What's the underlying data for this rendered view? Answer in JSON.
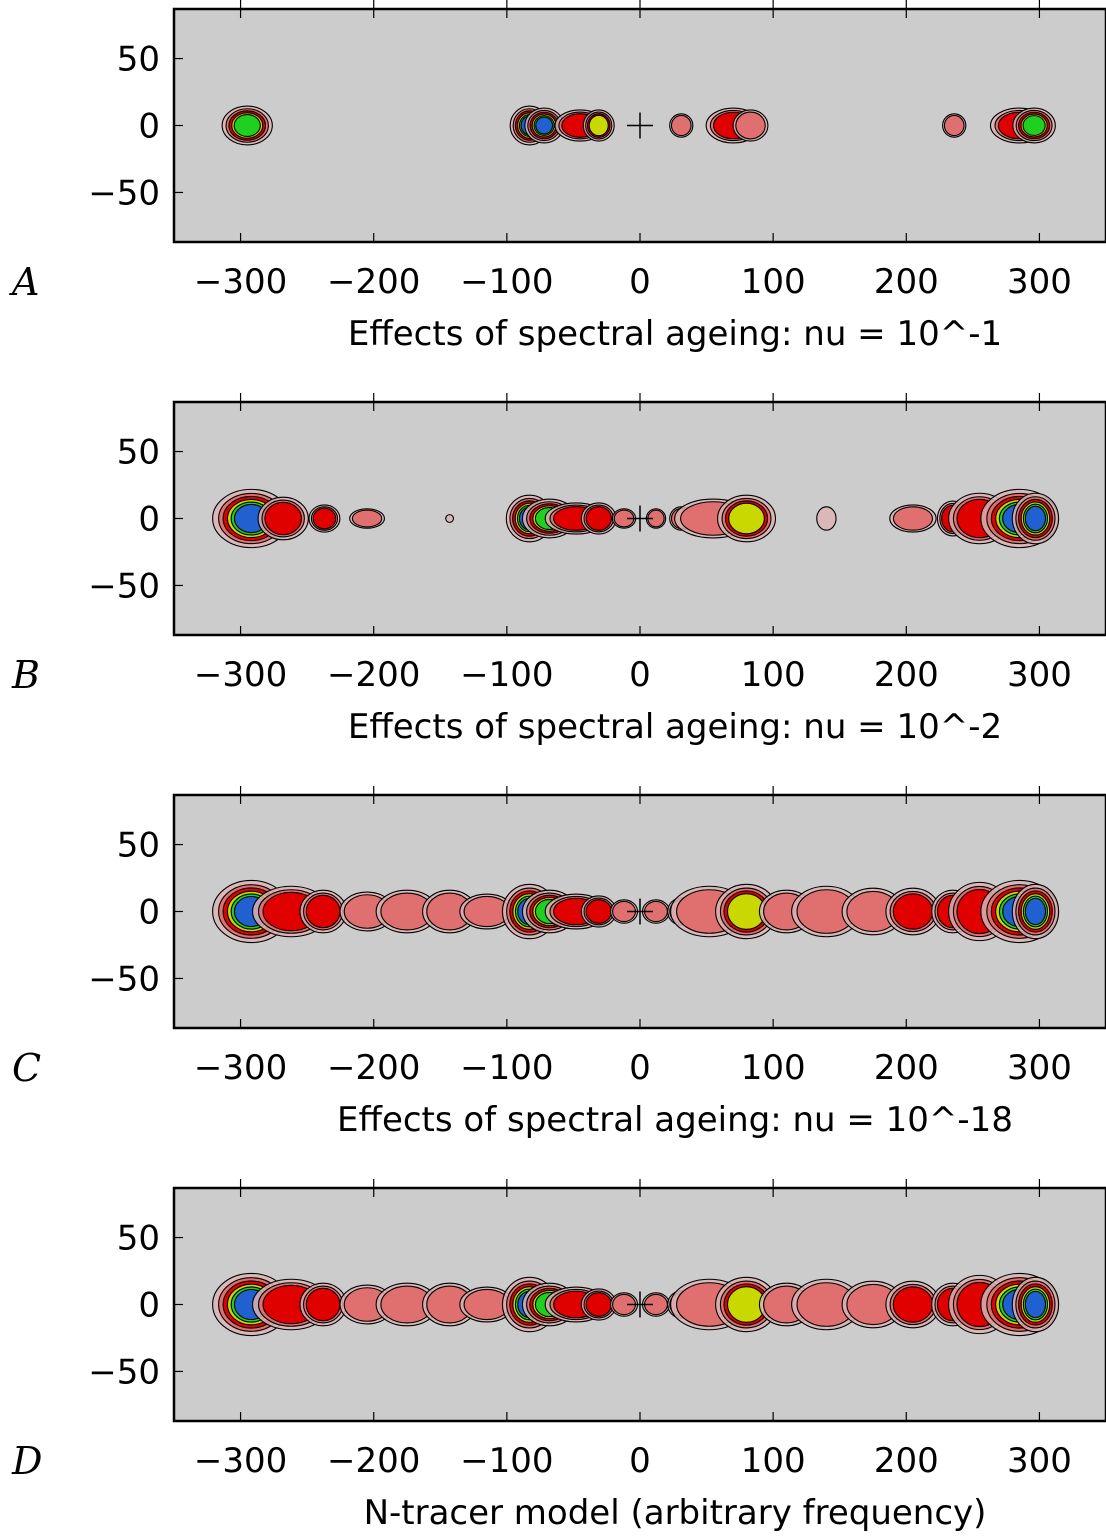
{
  "chart_data": [
    {
      "type": "heatmap",
      "panel_label": "A",
      "xlabel": "Effects of spectral ageing: nu = 10^-1",
      "ylabel": "",
      "xlim": [
        -350,
        350
      ],
      "ylim": [
        -87,
        87
      ],
      "xticks": [
        -300,
        -200,
        -100,
        0,
        100,
        200,
        300
      ],
      "xtick_labels": [
        "−300",
        "−200",
        "−100",
        "0",
        "100",
        "200",
        "300"
      ],
      "yticks": [
        50,
        0,
        -50
      ],
      "ytick_labels": [
        "50",
        "0",
        "−50"
      ],
      "background": "#cccccc",
      "core_marker_x": 0,
      "blobs": [
        {
          "x": -295,
          "w": 13,
          "h": 10,
          "level": 4
        },
        {
          "x": -83,
          "w": 10,
          "h": 10,
          "level": 5
        },
        {
          "x": -72,
          "w": 10,
          "h": 9,
          "level": 5
        },
        {
          "x": -45,
          "w": 13,
          "h": 8,
          "level": 2
        },
        {
          "x": -31,
          "w": 8,
          "h": 8,
          "level": 3
        },
        {
          "x": 31,
          "w": 6,
          "h": 6,
          "level": 1
        },
        {
          "x": 70,
          "w": 14,
          "h": 9,
          "level": 2
        },
        {
          "x": 83,
          "w": 9,
          "h": 8,
          "level": 1
        },
        {
          "x": 236,
          "w": 6,
          "h": 6,
          "level": 1
        },
        {
          "x": 285,
          "w": 15,
          "h": 9,
          "level": 2
        },
        {
          "x": 296,
          "w": 11,
          "h": 9,
          "level": 4
        }
      ]
    },
    {
      "type": "heatmap",
      "panel_label": "B",
      "xlabel": "Effects of spectral ageing: nu = 10^-2",
      "ylabel": "",
      "xlim": [
        -350,
        350
      ],
      "ylim": [
        -87,
        87
      ],
      "xticks": [
        -300,
        -200,
        -100,
        0,
        100,
        200,
        300
      ],
      "xtick_labels": [
        "−300",
        "−200",
        "−100",
        "0",
        "100",
        "200",
        "300"
      ],
      "yticks": [
        50,
        0,
        -50
      ],
      "ytick_labels": [
        "50",
        "0",
        "−50"
      ],
      "background": "#cccccc",
      "core_marker_x": 0,
      "blobs": [
        {
          "x": -292,
          "w": 20,
          "h": 15,
          "level": 5
        },
        {
          "x": -268,
          "w": 13,
          "h": 11,
          "level": 2
        },
        {
          "x": -237,
          "w": 8,
          "h": 7,
          "level": 2
        },
        {
          "x": -205,
          "w": 9,
          "h": 5,
          "level": 1
        },
        {
          "x": -143,
          "w": 2,
          "h": 2,
          "level": 0
        },
        {
          "x": -83,
          "w": 12,
          "h": 12,
          "level": 5
        },
        {
          "x": -68,
          "w": 14,
          "h": 10,
          "level": 4
        },
        {
          "x": -48,
          "w": 16,
          "h": 8,
          "level": 2
        },
        {
          "x": -31,
          "w": 9,
          "h": 8,
          "level": 2
        },
        {
          "x": -12,
          "w": 6,
          "h": 5,
          "level": 1
        },
        {
          "x": 12,
          "w": 5,
          "h": 5,
          "level": 1
        },
        {
          "x": 31,
          "w": 6,
          "h": 6,
          "level": 1
        },
        {
          "x": 55,
          "w": 20,
          "h": 10,
          "level": 1
        },
        {
          "x": 80,
          "w": 15,
          "h": 12,
          "level": 3
        },
        {
          "x": 140,
          "w": 5,
          "h": 6,
          "level": 0
        },
        {
          "x": 205,
          "w": 12,
          "h": 7,
          "level": 1
        },
        {
          "x": 235,
          "w": 8,
          "h": 9,
          "level": 2
        },
        {
          "x": 255,
          "w": 16,
          "h": 13,
          "level": 2
        },
        {
          "x": 285,
          "w": 20,
          "h": 15,
          "level": 5
        },
        {
          "x": 297,
          "w": 12,
          "h": 13,
          "level": 5
        }
      ]
    },
    {
      "type": "heatmap",
      "panel_label": "C",
      "xlabel": "Effects of spectral ageing: nu = 10^-18",
      "ylabel": "",
      "xlim": [
        -350,
        350
      ],
      "ylim": [
        -87,
        87
      ],
      "xticks": [
        -300,
        -200,
        -100,
        0,
        100,
        200,
        300
      ],
      "xtick_labels": [
        "−300",
        "−200",
        "−100",
        "0",
        "100",
        "200",
        "300"
      ],
      "yticks": [
        50,
        0,
        -50
      ],
      "ytick_labels": [
        "50",
        "0",
        "−50"
      ],
      "background": "#cccccc",
      "core_marker_x": 0,
      "blobs": [
        {
          "x": -292,
          "w": 20,
          "h": 16,
          "level": 5
        },
        {
          "x": -262,
          "w": 20,
          "h": 13,
          "level": 2
        },
        {
          "x": -238,
          "w": 12,
          "h": 11,
          "level": 2
        },
        {
          "x": -205,
          "w": 14,
          "h": 10,
          "level": 1
        },
        {
          "x": -175,
          "w": 16,
          "h": 11,
          "level": 1
        },
        {
          "x": -143,
          "w": 14,
          "h": 11,
          "level": 1
        },
        {
          "x": -115,
          "w": 14,
          "h": 9,
          "level": 1
        },
        {
          "x": -83,
          "w": 14,
          "h": 14,
          "level": 5
        },
        {
          "x": -68,
          "w": 14,
          "h": 11,
          "level": 4
        },
        {
          "x": -48,
          "w": 16,
          "h": 9,
          "level": 2
        },
        {
          "x": -31,
          "w": 9,
          "h": 8,
          "level": 2
        },
        {
          "x": -12,
          "w": 7,
          "h": 6,
          "level": 1
        },
        {
          "x": 12,
          "w": 7,
          "h": 6,
          "level": 1
        },
        {
          "x": 31,
          "w": 7,
          "h": 7,
          "level": 1
        },
        {
          "x": 52,
          "w": 20,
          "h": 13,
          "level": 1
        },
        {
          "x": 80,
          "w": 16,
          "h": 14,
          "level": 3
        },
        {
          "x": 110,
          "w": 14,
          "h": 11,
          "level": 1
        },
        {
          "x": 140,
          "w": 18,
          "h": 13,
          "level": 1
        },
        {
          "x": 175,
          "w": 16,
          "h": 12,
          "level": 1
        },
        {
          "x": 205,
          "w": 14,
          "h": 12,
          "level": 2
        },
        {
          "x": 235,
          "w": 11,
          "h": 11,
          "level": 2
        },
        {
          "x": 255,
          "w": 16,
          "h": 15,
          "level": 2
        },
        {
          "x": 285,
          "w": 20,
          "h": 16,
          "level": 5
        },
        {
          "x": 297,
          "w": 12,
          "h": 14,
          "level": 5
        }
      ]
    },
    {
      "type": "heatmap",
      "panel_label": "D",
      "xlabel": "N-tracer model (arbitrary frequency)",
      "ylabel": "",
      "xlim": [
        -350,
        350
      ],
      "ylim": [
        -87,
        87
      ],
      "xticks": [
        -300,
        -200,
        -100,
        0,
        100,
        200,
        300
      ],
      "xtick_labels": [
        "−300",
        "−200",
        "−100",
        "0",
        "100",
        "200",
        "300"
      ],
      "yticks": [
        50,
        0,
        -50
      ],
      "ytick_labels": [
        "50",
        "0",
        "−50"
      ],
      "background": "#cccccc",
      "core_marker_x": 0,
      "blobs": [
        {
          "x": -292,
          "w": 20,
          "h": 16,
          "level": 5
        },
        {
          "x": -262,
          "w": 20,
          "h": 13,
          "level": 2
        },
        {
          "x": -238,
          "w": 12,
          "h": 11,
          "level": 2
        },
        {
          "x": -205,
          "w": 14,
          "h": 10,
          "level": 1
        },
        {
          "x": -175,
          "w": 16,
          "h": 11,
          "level": 1
        },
        {
          "x": -143,
          "w": 14,
          "h": 11,
          "level": 1
        },
        {
          "x": -115,
          "w": 14,
          "h": 9,
          "level": 1
        },
        {
          "x": -83,
          "w": 14,
          "h": 14,
          "level": 5
        },
        {
          "x": -68,
          "w": 14,
          "h": 11,
          "level": 4
        },
        {
          "x": -48,
          "w": 16,
          "h": 9,
          "level": 2
        },
        {
          "x": -31,
          "w": 9,
          "h": 8,
          "level": 2
        },
        {
          "x": -12,
          "w": 7,
          "h": 6,
          "level": 1
        },
        {
          "x": 12,
          "w": 7,
          "h": 6,
          "level": 1
        },
        {
          "x": 31,
          "w": 7,
          "h": 7,
          "level": 1
        },
        {
          "x": 52,
          "w": 20,
          "h": 13,
          "level": 1
        },
        {
          "x": 80,
          "w": 16,
          "h": 14,
          "level": 3
        },
        {
          "x": 110,
          "w": 14,
          "h": 11,
          "level": 1
        },
        {
          "x": 140,
          "w": 18,
          "h": 13,
          "level": 1
        },
        {
          "x": 175,
          "w": 16,
          "h": 12,
          "level": 1
        },
        {
          "x": 205,
          "w": 14,
          "h": 12,
          "level": 2
        },
        {
          "x": 235,
          "w": 11,
          "h": 11,
          "level": 2
        },
        {
          "x": 255,
          "w": 16,
          "h": 15,
          "level": 2
        },
        {
          "x": 285,
          "w": 20,
          "h": 16,
          "level": 5
        },
        {
          "x": 297,
          "w": 12,
          "h": 14,
          "level": 5
        }
      ]
    }
  ]
}
